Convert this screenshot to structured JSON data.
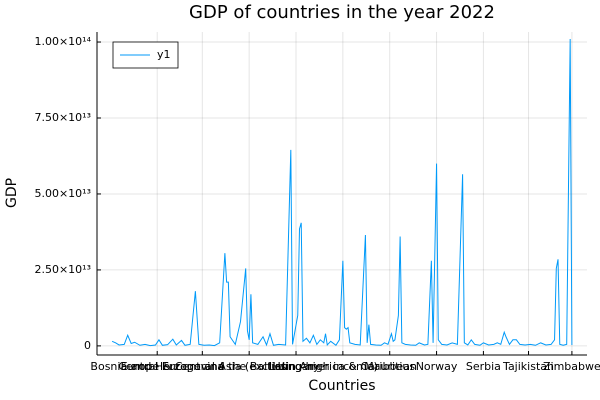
{
  "chart_data": {
    "type": "line",
    "title": "GDP of countries in the year 2022",
    "x_label": "Countries",
    "y_label": "GDP",
    "x": [
      1,
      3,
      5,
      8,
      10,
      12,
      14,
      17,
      20,
      23,
      26,
      28,
      30,
      33,
      36,
      38,
      41,
      43,
      46,
      49,
      51,
      54,
      57,
      60,
      63,
      66,
      67,
      68,
      69,
      72,
      75,
      78,
      79,
      80,
      81,
      82,
      85,
      88,
      90,
      92,
      94,
      97,
      101,
      104,
      105,
      108,
      109,
      110,
      111,
      113,
      115,
      117,
      119,
      121,
      123,
      124,
      125,
      127,
      130,
      132,
      134,
      135,
      136,
      137,
      138,
      141,
      144,
      147,
      148,
      149,
      150,
      153,
      156,
      158,
      160,
      162,
      163,
      164,
      166,
      167,
      168,
      170,
      173,
      176,
      178,
      181,
      183,
      185,
      186,
      188,
      189,
      191,
      194,
      197,
      200,
      203,
      204,
      206,
      208,
      210,
      213,
      215,
      218,
      221,
      223,
      225,
      227,
      228,
      230,
      232,
      234,
      236,
      239,
      242,
      245,
      248,
      251,
      254,
      256,
      257,
      258,
      259,
      261,
      263,
      265,
      266
    ],
    "series": [
      {
        "name": "y1",
        "color": "#009af9",
        "values": [
          1500000000000.0,
          1000000000000.0,
          300000000000.0,
          500000000000.0,
          3500000000000.0,
          800000000000.0,
          1200000000000.0,
          200000000000.0,
          500000000000.0,
          100000000000.0,
          300000000000.0,
          2000000000000.0,
          200000000000.0,
          400000000000.0,
          2200000000000.0,
          300000000000.0,
          1800000000000.0,
          200000000000.0,
          500000000000.0,
          18000000000000.0,
          500000000000.0,
          200000000000.0,
          300000000000.0,
          100000000000.0,
          1000000000000.0,
          30500000000000.0,
          21000000000000.0,
          21000000000000.0,
          3000000000000.0,
          500000000000.0,
          8000000000000.0,
          25500000000000.0,
          5000000000000.0,
          2000000000000.0,
          17000000000000.0,
          1000000000000.0,
          500000000000.0,
          3000000000000.0,
          300000000000.0,
          4000000000000.0,
          200000000000.0,
          500000000000.0,
          300000000000.0,
          64500000000000.0,
          500000000000.0,
          10000000000000.0,
          38500000000000.0,
          40500000000000.0,
          1500000000000.0,
          2500000000000.0,
          1000000000000.0,
          3500000000000.0,
          500000000000.0,
          2000000000000.0,
          1000000000000.0,
          4000000000000.0,
          300000000000.0,
          1500000000000.0,
          200000000000.0,
          2000000000000.0,
          28000000000000.0,
          6000000000000.0,
          5500000000000.0,
          6000000000000.0,
          1000000000000.0,
          500000000000.0,
          300000000000.0,
          36500000000000.0,
          1000000000000.0,
          7000000000000.0,
          500000000000.0,
          300000000000.0,
          200000000000.0,
          1000000000000.0,
          500000000000.0,
          4000000000000.0,
          1500000000000.0,
          2000000000000.0,
          10000000000000.0,
          36000000000000.0,
          1000000000000.0,
          500000000000.0,
          300000000000.0,
          200000000000.0,
          1000000000000.0,
          300000000000.0,
          500000000000.0,
          28000000000000.0,
          1000000000000.0,
          60000000000000.0,
          2000000000000.0,
          500000000000.0,
          300000000000.0,
          1000000000000.0,
          500000000000.0,
          56500000000000.0,
          1000000000000.0,
          300000000000.0,
          2000000000000.0,
          500000000000.0,
          200000000000.0,
          1000000000000.0,
          300000000000.0,
          500000000000.0,
          1000000000000.0,
          500000000000.0,
          4500000000000.0,
          3000000000000.0,
          500000000000.0,
          2000000000000.0,
          2000000000000.0,
          500000000000.0,
          300000000000.0,
          500000000000.0,
          200000000000.0,
          1000000000000.0,
          300000000000.0,
          500000000000.0,
          2000000000000.0,
          25500000000000.0,
          28500000000000.0,
          500000000000.0,
          200000000000.0,
          500000000000.0,
          101000000000000.0,
          300000000000.0
        ]
      }
    ],
    "xlim": [
      -7.7,
      274.7
    ],
    "xticks": [
      {
        "value": 27,
        "label": "Bosnia and Herzegovina"
      },
      {
        "value": 53,
        "label": "Central Europe and the Baltics"
      },
      {
        "value": 80,
        "label": "Europe & Central Asia (excluding high income)"
      },
      {
        "value": 107,
        "label": "Hungary"
      },
      {
        "value": 134,
        "label": "Latin America & Caribbean"
      },
      {
        "value": 161,
        "label": "Mauritius"
      },
      {
        "value": 188,
        "label": "Norway"
      },
      {
        "value": 215,
        "label": "Serbia"
      },
      {
        "value": 241,
        "label": "Tajikistan"
      },
      {
        "value": 266,
        "label": "Zimbabwe"
      }
    ],
    "ylim": [
      -3000000000000.0,
      103300000000000.0
    ],
    "yticks": [
      0,
      {
        "value": 25000000000000.0,
        "label": "2.50×10¹³"
      },
      {
        "value": 50000000000000.0,
        "label": "5.00×10¹³"
      },
      {
        "value": 75000000000000.0,
        "label": "7.50×10¹³"
      },
      {
        "value": 100000000000000.0,
        "label": "1.00×10¹⁴"
      }
    ],
    "grid": true,
    "legend": "top-left"
  }
}
